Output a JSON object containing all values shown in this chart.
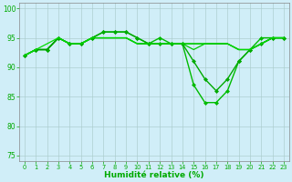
{
  "lines": [
    {
      "x": [
        0,
        1,
        2,
        3,
        4,
        5,
        6,
        7,
        8,
        9,
        10,
        11,
        12,
        13,
        14,
        15,
        16,
        17,
        18,
        19,
        20,
        21,
        22,
        23
      ],
      "y": [
        92,
        93,
        93,
        95,
        94,
        94,
        95,
        96,
        96,
        96,
        95,
        94,
        95,
        94,
        94,
        87,
        84,
        84,
        86,
        91,
        93,
        95,
        95,
        95
      ],
      "color": "#00bb00",
      "lw": 1.0,
      "marker": "D",
      "ms": 2.0
    },
    {
      "x": [
        0,
        1,
        2,
        3,
        4,
        5,
        6,
        7,
        8,
        9,
        10,
        11,
        12,
        13,
        14,
        15,
        16,
        17,
        18,
        19,
        20,
        21,
        22,
        23
      ],
      "y": [
        92,
        93,
        93,
        95,
        94,
        94,
        95,
        96,
        96,
        96,
        95,
        94,
        94,
        94,
        94,
        91,
        88,
        86,
        88,
        91,
        93,
        94,
        95,
        95
      ],
      "color": "#00aa00",
      "lw": 1.0,
      "marker": "D",
      "ms": 2.0
    },
    {
      "x": [
        0,
        1,
        2,
        3,
        4,
        5,
        6,
        7,
        8,
        9,
        10,
        11,
        12,
        13,
        14,
        15,
        16,
        17,
        18,
        19,
        20,
        21,
        22,
        23
      ],
      "y": [
        92,
        93,
        93,
        95,
        94,
        94,
        95,
        95,
        95,
        95,
        94,
        94,
        94,
        94,
        94,
        93,
        94,
        94,
        94,
        93,
        93,
        94,
        95,
        95
      ],
      "color": "#00cc00",
      "lw": 0.9,
      "marker": null,
      "ms": 0
    },
    {
      "x": [
        0,
        1,
        2,
        3,
        4,
        5,
        6,
        7,
        8,
        9,
        10,
        11,
        12,
        13,
        14,
        15,
        16,
        17,
        18,
        19,
        20,
        21,
        22,
        23
      ],
      "y": [
        92,
        93,
        93,
        95,
        94,
        94,
        95,
        95,
        95,
        95,
        94,
        94,
        94,
        94,
        94,
        94,
        94,
        94,
        94,
        93,
        93,
        94,
        95,
        95
      ],
      "color": "#009900",
      "lw": 0.9,
      "marker": null,
      "ms": 0
    },
    {
      "x": [
        0,
        1,
        2,
        3,
        4,
        5,
        6,
        7,
        8,
        9,
        10,
        11,
        12,
        13,
        14,
        15,
        16,
        17,
        18,
        19,
        20,
        21,
        22,
        23
      ],
      "y": [
        92,
        93,
        94,
        95,
        94,
        94,
        95,
        95,
        95,
        95,
        94,
        94,
        94,
        94,
        94,
        94,
        94,
        94,
        94,
        93,
        93,
        94,
        95,
        95
      ],
      "color": "#00dd00",
      "lw": 0.9,
      "marker": null,
      "ms": 0
    }
  ],
  "xlabel": "Humidité relative (%)",
  "ylim": [
    74,
    101
  ],
  "xlim": [
    -0.5,
    23.5
  ],
  "yticks": [
    75,
    80,
    85,
    90,
    95,
    100
  ],
  "xticks": [
    0,
    1,
    2,
    3,
    4,
    5,
    6,
    7,
    8,
    9,
    10,
    11,
    12,
    13,
    14,
    15,
    16,
    17,
    18,
    19,
    20,
    21,
    22,
    23
  ],
  "bg_color": "#d0eef8",
  "grid_color": "#aacccc",
  "xlabel_color": "#00aa00",
  "tick_color": "#00aa00"
}
